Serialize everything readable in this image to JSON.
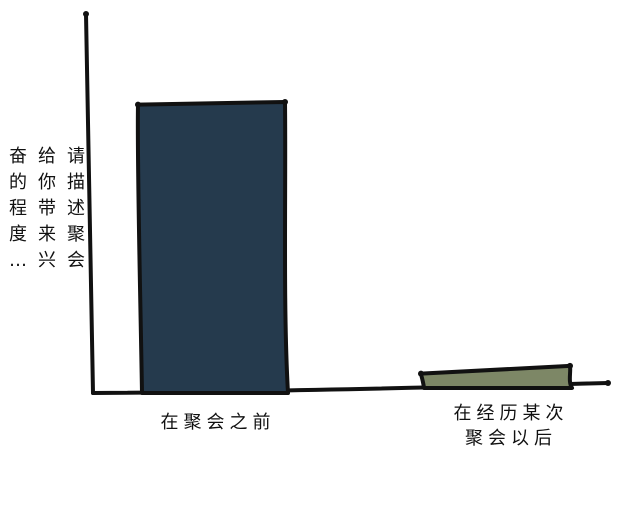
{
  "chart_data": {
    "type": "bar",
    "title": "",
    "xlabel": "",
    "ylabel": "请描述聚会给你带来兴奋的程度…",
    "categories": [
      "在聚会之前",
      "在经历某次\n聚会以后"
    ],
    "values": [
      100,
      7
    ],
    "ylim": [
      0,
      115
    ],
    "grid": false,
    "legend": "none",
    "colors": [
      "#253a4d",
      "#7d8766"
    ],
    "outline_color": "#111111",
    "style": "hand-drawn"
  }
}
